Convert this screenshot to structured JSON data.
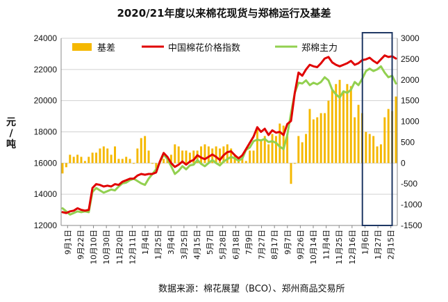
{
  "title": "2020/21年度以来棉花现货与郑棉运行及基差",
  "source": "数据来源：棉花展望（BCO）、郑州商品交易所",
  "chart_data": {
    "type": "line",
    "ylabel": "元/吨",
    "y_left_range": [
      12000,
      24000
    ],
    "y_left_ticks": [
      12000,
      14000,
      16000,
      18000,
      20000,
      22000,
      24000
    ],
    "y_right_range": [
      -1500,
      3000
    ],
    "y_right_ticks": [
      -1500,
      -1000,
      -500,
      0,
      500,
      1000,
      1500,
      2000,
      2500,
      3000
    ],
    "x_tick_labels": [
      "9月1日",
      "9月22日",
      "10月10日",
      "10月30日",
      "11月20日",
      "12月11日",
      "1月4日",
      "1月25日",
      "3月4日",
      "3月25日",
      "4月15日",
      "5月7日",
      "5月28日",
      "6月18日",
      "7月9日",
      "7月27日",
      "8月17日",
      "9月7日",
      "9月26日",
      "10月14日",
      "11月4日",
      "11月25日",
      "12月16日",
      "1月6日",
      "1月27日",
      "2月15日"
    ],
    "legend": [
      "基差",
      "中国棉花价格指数",
      "郑棉主力"
    ],
    "grid": true,
    "legend_position": "top",
    "highlight_box": {
      "label": "",
      "from_index": 23.3,
      "to_index": 25.6
    },
    "colors": {
      "basis": "#f5b800",
      "spot": "#e00000",
      "futures": "#92d050",
      "box": "#1f3864"
    },
    "series": [
      {
        "name": "中国棉花价格指数",
        "axis": "left",
        "values": [
          12850,
          12800,
          12900,
          12950,
          13100,
          13000,
          12950,
          13000,
          14400,
          14650,
          14600,
          14500,
          14550,
          14500,
          14650,
          14600,
          14800,
          14900,
          15000,
          15000,
          15200,
          15300,
          15250,
          15300,
          15300,
          15400,
          16100,
          16650,
          16400,
          16000,
          15750,
          15900,
          16100,
          15900,
          16100,
          16200,
          16500,
          16350,
          16250,
          16400,
          16550,
          16400,
          16200,
          16500,
          16700,
          16750,
          16500,
          16300,
          16500,
          16900,
          17300,
          17700,
          18300,
          18000,
          18200,
          17800,
          18100,
          17950,
          18000,
          17800,
          18500,
          18700,
          20500,
          21800,
          21600,
          22000,
          22300,
          22200,
          22150,
          22400,
          22700,
          22800,
          22450,
          22300,
          22200,
          22300,
          22400,
          22550,
          22300,
          22400,
          22600,
          22650,
          22750,
          22550,
          22400,
          22650,
          22900,
          22800,
          22850,
          22700
        ]
      },
      {
        "name": "郑棉主力",
        "axis": "left",
        "values": [
          13100,
          12900,
          12700,
          12800,
          12900,
          12850,
          12900,
          12850,
          14150,
          14400,
          14250,
          14100,
          14200,
          14300,
          14250,
          14500,
          14700,
          14750,
          14900,
          15000,
          14850,
          14700,
          14600,
          15000,
          15300,
          15600,
          16050,
          16550,
          16250,
          15800,
          15300,
          15500,
          15800,
          15600,
          15850,
          15900,
          16200,
          15950,
          15800,
          16000,
          16200,
          16000,
          15850,
          16100,
          16250,
          16400,
          16300,
          16150,
          16300,
          16850,
          17000,
          17400,
          17500,
          17450,
          17550,
          17350,
          17400,
          17300,
          17050,
          16900,
          17800,
          19200,
          20500,
          21150,
          21100,
          21300,
          21000,
          21150,
          21050,
          21200,
          21500,
          21300,
          20700,
          20400,
          20200,
          20600,
          20500,
          20700,
          21200,
          21000,
          21400,
          21900,
          22050,
          21900,
          22000,
          22200,
          21800,
          21500,
          21600,
          21100
        ]
      },
      {
        "name": "基差",
        "axis": "right",
        "values": [
          -250,
          -100,
          200,
          150,
          200,
          150,
          50,
          150,
          250,
          250,
          350,
          400,
          350,
          200,
          400,
          100,
          100,
          150,
          100,
          0,
          350,
          600,
          650,
          300,
          0,
          -200,
          50,
          100,
          150,
          200,
          450,
          400,
          300,
          300,
          250,
          300,
          300,
          400,
          450,
          400,
          350,
          400,
          350,
          400,
          450,
          350,
          200,
          150,
          200,
          50,
          300,
          300,
          800,
          550,
          650,
          450,
          700,
          650,
          950,
          900,
          700,
          -500,
          0,
          650,
          500,
          700,
          1300,
          1050,
          1100,
          1200,
          1200,
          1500,
          1750,
          1900,
          2000,
          1700,
          1900,
          1850,
          1100,
          1400,
          1200,
          750,
          700,
          650,
          400,
          450,
          1100,
          1300,
          1250,
          1600
        ]
      }
    ]
  }
}
